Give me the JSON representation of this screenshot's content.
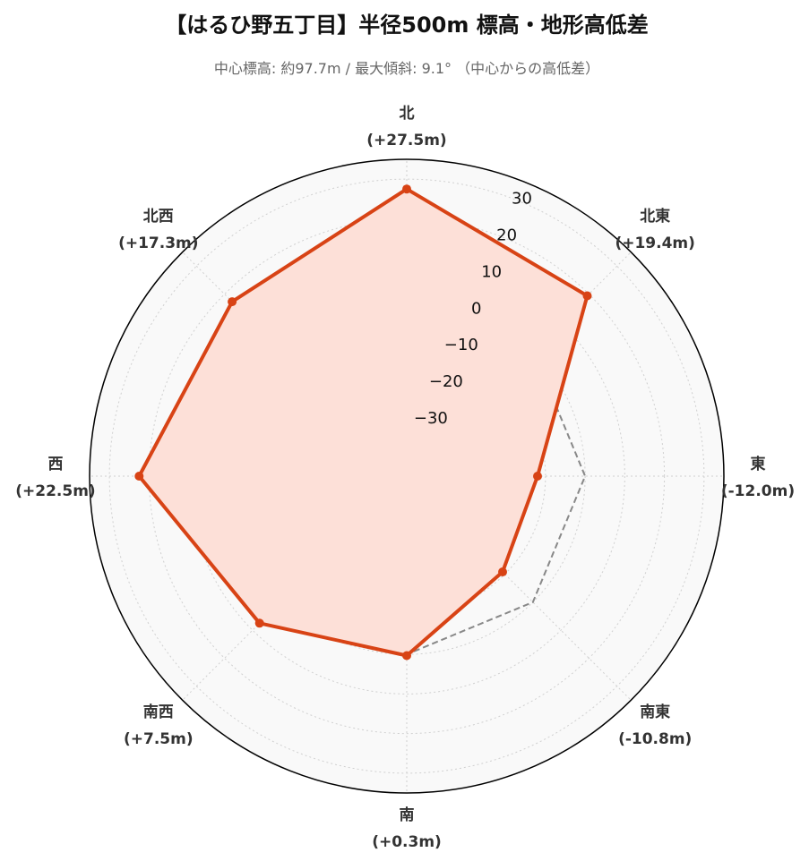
{
  "chart_data": {
    "type": "radar",
    "title": "【はるひ野五丁目】半径500m 標高・地形高低差",
    "subtitle": "中心標高: 約97.7m / 最大傾斜: 9.1° （中心からの高低差）",
    "directions": [
      {
        "name": "北",
        "value": 27.5,
        "label": "(+27.5m)"
      },
      {
        "name": "北東",
        "value": 19.4,
        "label": "(+19.4m)"
      },
      {
        "name": "東",
        "value": -12.0,
        "label": "(-12.0m)"
      },
      {
        "name": "南東",
        "value": -10.8,
        "label": "(-10.8m)"
      },
      {
        "name": "南",
        "value": 0.3,
        "label": "(+0.3m)"
      },
      {
        "name": "南西",
        "value": 7.5,
        "label": "(+7.5m)"
      },
      {
        "name": "西",
        "value": 22.5,
        "label": "(+22.5m)"
      },
      {
        "name": "北西",
        "value": 17.3,
        "label": "(+17.3m)"
      }
    ],
    "reference_line_value": 0,
    "rlim": [
      -45,
      35
    ],
    "rticks": [
      -30,
      -20,
      -10,
      0,
      10,
      20,
      30
    ],
    "grid": true,
    "colors": {
      "series_line": "#d84315",
      "series_fill": "#fde0d8",
      "reference_line": "#888888",
      "background": "#f9f9f9"
    }
  }
}
